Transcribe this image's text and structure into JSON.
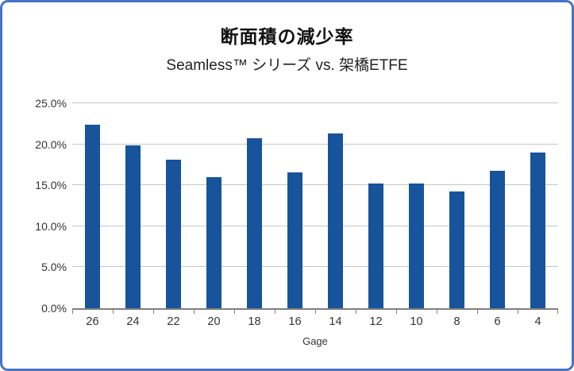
{
  "chart_data": {
    "type": "bar",
    "title": "断面積の減少率",
    "subtitle": "Seamless™ シリーズ vs. 架橋ETFE",
    "xlabel": "Gage",
    "ylabel": "",
    "categories": [
      "26",
      "24",
      "22",
      "20",
      "18",
      "16",
      "14",
      "12",
      "10",
      "8",
      "6",
      "4"
    ],
    "values": [
      22.4,
      19.9,
      18.1,
      16.0,
      20.7,
      16.6,
      21.3,
      15.2,
      15.2,
      14.2,
      16.8,
      19.0
    ],
    "ylim": [
      0,
      25
    ],
    "ytick_step": 5,
    "ytick_labels": [
      "0.0%",
      "5.0%",
      "10.0%",
      "15.0%",
      "20.0%",
      "25.0%"
    ],
    "grid": true,
    "legend": "none",
    "bar_color": "#17549B",
    "grid_color": "#C6C6C6",
    "axis_color": "#7F7F7F",
    "frame_border_color": "#4673C8"
  }
}
